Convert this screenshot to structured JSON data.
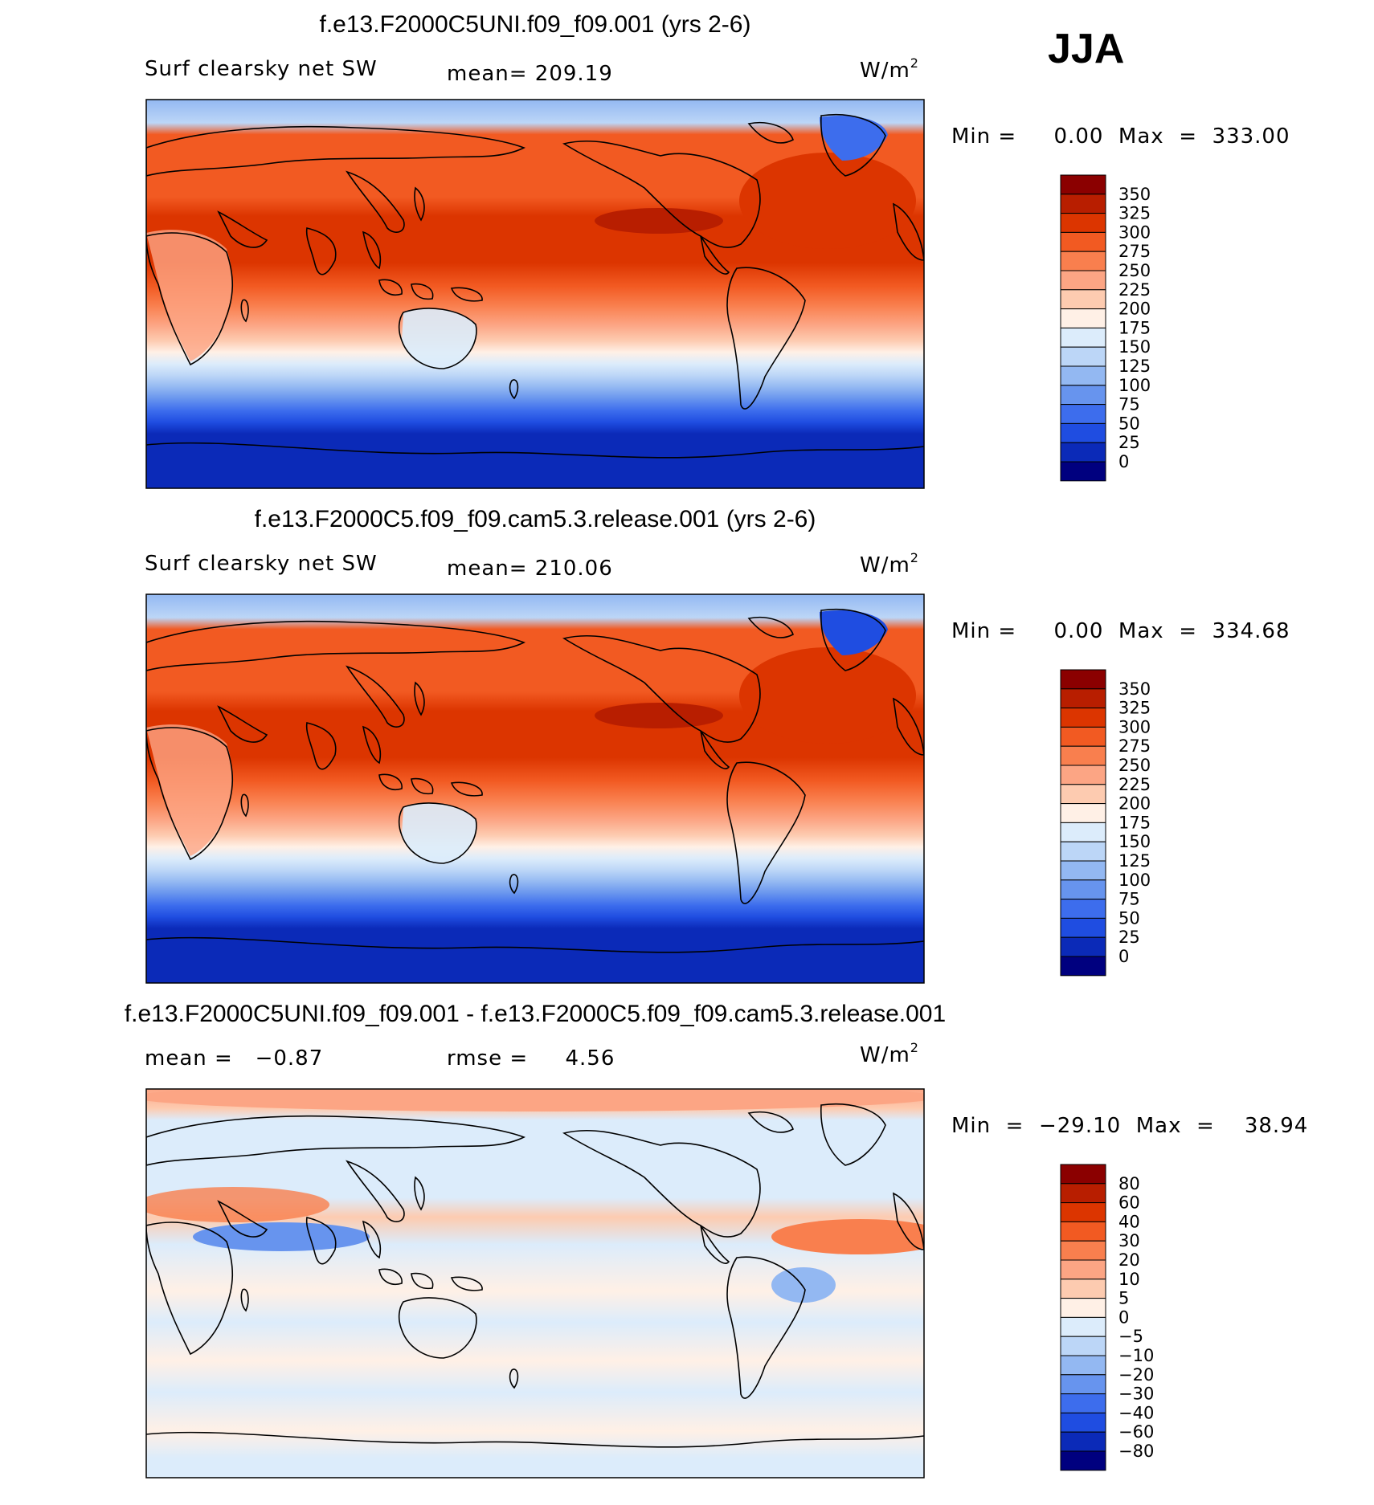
{
  "season": "JJA",
  "chart_data": [
    {
      "type": "heatmap",
      "title": "f.e13.F2000C5UNI.f09_f09.001 (yrs 2-6)",
      "variable": "Surf clearsky net SW",
      "stat_text": "mean= 209.19",
      "units_base": "W/m",
      "units_exp": "2",
      "minmax_text": "Min =     0.00  Max  =  333.00",
      "levels": [
        "350",
        "325",
        "300",
        "275",
        "250",
        "225",
        "200",
        "175",
        "150",
        "125",
        "100",
        "75",
        "50",
        "25",
        "0"
      ],
      "colors": [
        "#8b0000",
        "#b81e00",
        "#dc3500",
        "#f25a22",
        "#f97f4e",
        "#fca584",
        "#fdcbb0",
        "#fff0e6",
        "#dcecfb",
        "#bcd6f7",
        "#93b8f2",
        "#6794ee",
        "#3d6ded",
        "#1f4de1",
        "#0b2ab8",
        "#00007f"
      ]
    },
    {
      "type": "heatmap",
      "title": "f.e13.F2000C5.f09_f09.cam5.3.release.001 (yrs 2-6)",
      "variable": "Surf clearsky net SW",
      "stat_text": "mean= 210.06",
      "units_base": "W/m",
      "units_exp": "2",
      "minmax_text": "Min =     0.00  Max  =  334.68",
      "levels": [
        "350",
        "325",
        "300",
        "275",
        "250",
        "225",
        "200",
        "175",
        "150",
        "125",
        "100",
        "75",
        "50",
        "25",
        "0"
      ],
      "colors": [
        "#8b0000",
        "#b81e00",
        "#dc3500",
        "#f25a22",
        "#f97f4e",
        "#fca584",
        "#fdcbb0",
        "#fff0e6",
        "#dcecfb",
        "#bcd6f7",
        "#93b8f2",
        "#6794ee",
        "#3d6ded",
        "#1f4de1",
        "#0b2ab8",
        "#00007f"
      ]
    },
    {
      "type": "heatmap",
      "title": "f.e13.F2000C5UNI.f09_f09.001 - f.e13.F2000C5.f09_f09.cam5.3.release.001",
      "variable": "mean =   −0.87",
      "stat_text": "rmse =     4.56",
      "units_base": "W/m",
      "units_exp": "2",
      "minmax_text": "Min  =  −29.10  Max  =    38.94",
      "levels": [
        "80",
        "60",
        "40",
        "30",
        "20",
        "10",
        "5",
        "0",
        "−5",
        "−10",
        "−20",
        "−30",
        "−40",
        "−60",
        "−80"
      ],
      "colors": [
        "#8b0000",
        "#b81e00",
        "#dc3500",
        "#f25a22",
        "#f97f4e",
        "#fca584",
        "#fdcbb0",
        "#fff0e6",
        "#dcecfb",
        "#bcd6f7",
        "#93b8f2",
        "#6794ee",
        "#3d6ded",
        "#1f4de1",
        "#0b2ab8",
        "#00007f"
      ]
    }
  ]
}
